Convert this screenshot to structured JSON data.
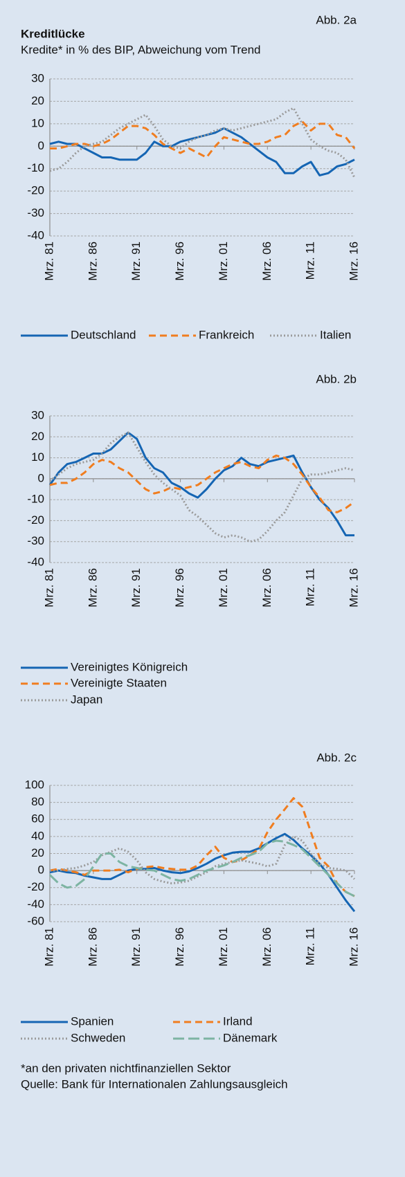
{
  "chart_data": [
    {
      "type": "line",
      "label": "Abb. 2a",
      "title": "Kreditlücke",
      "subtitle": "Kredite* in % des BIP, Abweichung vom Trend",
      "categories": [
        "Mrz. 81",
        null,
        null,
        null,
        null,
        "Mrz. 86",
        null,
        null,
        null,
        null,
        "Mrz. 91",
        null,
        null,
        null,
        null,
        "Mrz. 96",
        null,
        null,
        null,
        null,
        "Mrz. 01",
        null,
        null,
        null,
        null,
        "Mrz. 06",
        null,
        null,
        null,
        null,
        "Mrz. 11",
        null,
        null,
        null,
        null,
        "Mrz. 16"
      ],
      "ylim": [
        -40,
        30
      ],
      "yticks": [
        -40,
        -30,
        -20,
        -10,
        0,
        10,
        20,
        30
      ],
      "grid": true,
      "series": [
        {
          "name": "Deutschland",
          "color": "#1565b3",
          "dash": "solid",
          "values": [
            1,
            2,
            1,
            1,
            -1,
            -3,
            -5,
            -5,
            -6,
            -6,
            -6,
            -3,
            2,
            0,
            0,
            2,
            3,
            4,
            5,
            6,
            8,
            6,
            4,
            1,
            -2,
            -5,
            -7,
            -12,
            -12,
            -9,
            -7,
            -13,
            -12,
            -9,
            -8,
            -6
          ]
        },
        {
          "name": "Frankreich",
          "color": "#f07d1f",
          "dash": "dashed",
          "values": [
            -1,
            -1,
            0,
            1,
            1,
            0,
            1,
            3,
            6,
            9,
            9,
            8,
            5,
            1,
            -1,
            -3,
            -1,
            -3,
            -5,
            0,
            4,
            3,
            2,
            1,
            1,
            2,
            4,
            5,
            9,
            11,
            7,
            10,
            10,
            5,
            4,
            -1
          ]
        },
        {
          "name": "Italien",
          "color": "#9a9a9a",
          "dash": "dotted",
          "values": [
            -11,
            -10,
            -7,
            -3,
            0,
            1,
            2,
            5,
            8,
            10,
            12,
            14,
            9,
            3,
            0,
            -1,
            2,
            4,
            5,
            7,
            8,
            7,
            8,
            9,
            10,
            11,
            12,
            15,
            17,
            10,
            3,
            0,
            -2,
            -3,
            -6,
            -14
          ]
        }
      ]
    },
    {
      "type": "line",
      "label": "Abb. 2b",
      "categories": [
        "Mrz. 81",
        null,
        null,
        null,
        null,
        "Mrz. 86",
        null,
        null,
        null,
        null,
        "Mrz. 91",
        null,
        null,
        null,
        null,
        "Mrz. 96",
        null,
        null,
        null,
        null,
        "Mrz. 01",
        null,
        null,
        null,
        null,
        "Mrz. 06",
        null,
        null,
        null,
        null,
        "Mrz. 11",
        null,
        null,
        null,
        null,
        "Mrz. 16"
      ],
      "ylim": [
        -40,
        30
      ],
      "yticks": [
        -40,
        -30,
        -20,
        -10,
        0,
        10,
        20,
        30
      ],
      "grid": true,
      "series": [
        {
          "name": "Vereinigtes Königreich",
          "color": "#1565b3",
          "dash": "solid",
          "values": [
            -3,
            3,
            7,
            8,
            10,
            12,
            12,
            14,
            18,
            22,
            19,
            10,
            5,
            3,
            -2,
            -4,
            -7,
            -9,
            -5,
            0,
            4,
            6,
            10,
            7,
            6,
            8,
            9,
            10,
            11,
            3,
            -4,
            -10,
            -14,
            -20,
            -27,
            -27
          ]
        },
        {
          "name": "Vereinigte Staaten",
          "color": "#f07d1f",
          "dash": "dashed",
          "values": [
            -3,
            -2,
            -2,
            0,
            3,
            7,
            9,
            8,
            5,
            3,
            -1,
            -5,
            -7,
            -6,
            -4,
            -5,
            -4,
            -3,
            0,
            3,
            5,
            7,
            8,
            6,
            5,
            9,
            11,
            10,
            7,
            2,
            -4,
            -9,
            -15,
            -16,
            -14,
            -11
          ]
        },
        {
          "name": "Japan",
          "color": "#9a9a9a",
          "dash": "dotted",
          "values": [
            -1,
            2,
            5,
            7,
            8,
            9,
            12,
            17,
            20,
            22,
            15,
            8,
            2,
            -2,
            -5,
            -8,
            -15,
            -18,
            -22,
            -26,
            -28,
            -27,
            -28,
            -30,
            -29,
            -25,
            -20,
            -16,
            -8,
            0,
            2,
            2,
            3,
            4,
            5,
            4
          ]
        }
      ]
    },
    {
      "type": "line",
      "label": "Abb. 2c",
      "categories": [
        "Mrz. 81",
        null,
        null,
        null,
        null,
        "Mrz. 86",
        null,
        null,
        null,
        null,
        "Mrz. 91",
        null,
        null,
        null,
        null,
        "Mrz. 96",
        null,
        null,
        null,
        null,
        "Mrz. 01",
        null,
        null,
        null,
        null,
        "Mrz. 06",
        null,
        null,
        null,
        null,
        "Mrz. 11",
        null,
        null,
        null,
        null,
        "Mrz. 16"
      ],
      "ylim": [
        -60,
        100
      ],
      "yticks": [
        -60,
        -40,
        -20,
        0,
        20,
        40,
        60,
        80,
        100
      ],
      "grid": true,
      "series": [
        {
          "name": "Spanien",
          "color": "#1565b3",
          "dash": "solid",
          "values": [
            -2,
            0,
            -2,
            -3,
            -6,
            -8,
            -10,
            -10,
            -5,
            0,
            2,
            2,
            3,
            0,
            -2,
            -3,
            -1,
            3,
            8,
            14,
            18,
            21,
            22,
            22,
            26,
            32,
            38,
            43,
            36,
            26,
            18,
            8,
            -5,
            -20,
            -35,
            -48
          ]
        },
        {
          "name": "Irland",
          "color": "#f07d1f",
          "dash": "dashed",
          "values": [
            0,
            2,
            0,
            -2,
            -5,
            0,
            0,
            0,
            1,
            -2,
            2,
            4,
            5,
            3,
            2,
            1,
            1,
            6,
            18,
            28,
            15,
            10,
            12,
            18,
            25,
            45,
            60,
            72,
            85,
            75,
            45,
            15,
            5,
            -15,
            -25,
            -30
          ]
        },
        {
          "name": "Schweden",
          "color": "#9a9a9a",
          "dash": "dotted",
          "values": [
            0,
            0,
            2,
            3,
            6,
            10,
            18,
            22,
            26,
            22,
            12,
            -2,
            -10,
            -13,
            -15,
            -14,
            -12,
            -7,
            -2,
            5,
            8,
            10,
            12,
            10,
            8,
            5,
            8,
            30,
            40,
            35,
            20,
            8,
            3,
            2,
            0,
            -10
          ]
        },
        {
          "name": "Dänemark",
          "color": "#7db4a2",
          "dash": "longdash",
          "values": [
            -5,
            -15,
            -20,
            -18,
            -10,
            5,
            20,
            20,
            10,
            5,
            3,
            1,
            0,
            -5,
            -10,
            -12,
            -10,
            -5,
            0,
            3,
            6,
            10,
            15,
            18,
            22,
            32,
            35,
            34,
            30,
            25,
            15,
            5,
            -5,
            -15,
            -25,
            -30
          ]
        }
      ]
    }
  ],
  "footer": {
    "note": "*an den privaten nichtfinanziellen Sektor",
    "source": "Quelle: Bank für Internationalen Zahlungsausgleich"
  }
}
